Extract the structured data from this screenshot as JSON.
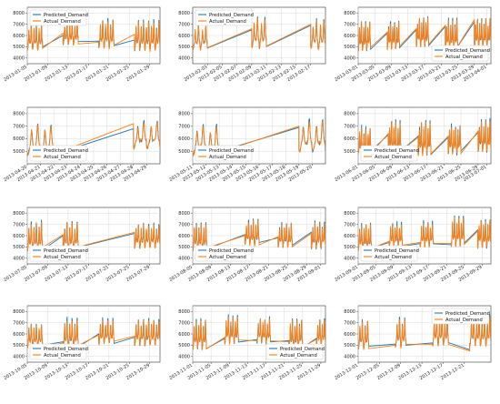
{
  "figure": {
    "legend_labels": {
      "predicted": "Predicted_Demand",
      "actual": "Actual_Demand"
    },
    "colors": {
      "predicted": "#1f77b4",
      "actual": "#ff7f0e",
      "grid": "#d9d9d9",
      "axis": "#333333"
    }
  },
  "chart_data": [
    {
      "type": "line",
      "title": "",
      "xlabel": "",
      "ylabel": "",
      "legend": "top-left",
      "grid": true,
      "ylim": [
        3500,
        8500
      ],
      "yticks": [
        4000,
        5000,
        6000,
        7000,
        8000
      ],
      "xlim": [
        "2013-01-05",
        "2013-01-31"
      ],
      "xticks": [
        "2013-01-05",
        "2013-01-09",
        "2013-01-13",
        "2013-01-17",
        "2013-01-21",
        "2013-01-25",
        "2013-01-29"
      ],
      "segments": [
        [
          "2013-01-05",
          "2013-01-08"
        ],
        [
          "2013-01-12",
          "2013-01-15"
        ],
        [
          "2013-01-19",
          "2013-01-22"
        ],
        [
          "2013-01-26",
          "2013-01-31"
        ]
      ],
      "bridge": {
        "predicted": [
          6000,
          5500,
          5600
        ],
        "actual": [
          6200,
          5400,
          6100
        ]
      },
      "series": [
        {
          "name": "Predicted_Demand",
          "x_start": "2013-01-05",
          "x_end": "2013-01-31"
        },
        {
          "name": "Actual_Demand",
          "x_start": "2013-01-05",
          "x_end": "2013-01-31"
        }
      ]
    },
    {
      "type": "line",
      "title": "",
      "xlabel": "",
      "ylabel": "",
      "legend": "top-left",
      "grid": true,
      "ylim": [
        3500,
        8500
      ],
      "yticks": [
        4000,
        5000,
        6000,
        7000,
        8000
      ],
      "xlim": [
        "2013-02-01",
        "2013-02-19"
      ],
      "xticks": [
        "2013-02-03",
        "2013-02-05",
        "2013-02-07",
        "2013-02-09",
        "2013-02-11",
        "2013-02-13",
        "2013-02-15",
        "2013-02-17"
      ],
      "segments": [
        [
          "2013-02-01",
          "2013-02-03"
        ],
        [
          "2013-02-09",
          "2013-02-11"
        ],
        [
          "2013-02-17",
          "2013-02-19"
        ]
      ],
      "bridge": {
        "predicted": [
          6500,
          6900
        ],
        "actual": [
          6600,
          7000
        ]
      },
      "series": [
        {
          "name": "Predicted_Demand",
          "x_start": "2013-02-01",
          "x_end": "2013-02-19"
        },
        {
          "name": "Actual_Demand",
          "x_start": "2013-02-01",
          "x_end": "2013-02-19"
        }
      ]
    },
    {
      "type": "line",
      "title": "",
      "xlabel": "",
      "ylabel": "",
      "legend": "bottom-right",
      "grid": true,
      "ylim": [
        3500,
        8500
      ],
      "yticks": [
        4000,
        5000,
        6000,
        7000,
        8000
      ],
      "xlim": [
        "2013-03-01",
        "2013-04-02"
      ],
      "xticks": [
        "2013-03-01",
        "2013-03-05",
        "2013-03-09",
        "2013-03-13",
        "2013-03-17",
        "2013-03-21",
        "2013-03-25",
        "2013-03-29",
        "2013-04-01"
      ],
      "segments": [
        [
          "2013-03-01",
          "2013-03-04"
        ],
        [
          "2013-03-08",
          "2013-03-11"
        ],
        [
          "2013-03-15",
          "2013-03-18"
        ],
        [
          "2013-03-22",
          "2013-03-25"
        ],
        [
          "2013-03-29",
          "2013-04-02"
        ]
      ],
      "bridge": {
        "predicted": [
          6200,
          6500,
          6800,
          7200
        ],
        "actual": [
          6300,
          6600,
          6900,
          7400
        ]
      },
      "series": [
        {
          "name": "Predicted_Demand",
          "x_start": "2013-03-01",
          "x_end": "2013-04-02"
        },
        {
          "name": "Actual_Demand",
          "x_start": "2013-03-01",
          "x_end": "2013-04-02"
        }
      ]
    },
    {
      "type": "line",
      "title": "",
      "xlabel": "",
      "ylabel": "",
      "legend": "bottom-left",
      "grid": true,
      "ylim": [
        4000,
        8500
      ],
      "yticks": [
        5000,
        6000,
        7000,
        8000
      ],
      "xlim": [
        "2013-04-20",
        "2013-04-30"
      ],
      "xticks": [
        "2013-04-20",
        "2013-04-21",
        "2013-04-22",
        "2013-04-23",
        "2013-04-24",
        "2013-04-25",
        "2013-04-26",
        "2013-04-27",
        "2013-04-28",
        "2013-04-29"
      ],
      "segments": [
        [
          "2013-04-20",
          "2013-04-22"
        ],
        [
          "2013-04-28",
          "2013-04-30"
        ]
      ],
      "bridge": {
        "predicted": [
          6800
        ],
        "actual": [
          7200
        ]
      },
      "series": [
        {
          "name": "Predicted_Demand",
          "x_start": "2013-04-20",
          "x_end": "2013-04-30"
        },
        {
          "name": "Actual_Demand",
          "x_start": "2013-04-20",
          "x_end": "2013-04-30"
        }
      ]
    },
    {
      "type": "line",
      "title": "",
      "xlabel": "",
      "ylabel": "",
      "legend": "bottom-left",
      "grid": true,
      "ylim": [
        4000,
        8500
      ],
      "yticks": [
        5000,
        6000,
        7000,
        8000
      ],
      "xlim": [
        "2013-05-11",
        "2013-05-21"
      ],
      "xticks": [
        "2013-05-11",
        "2013-05-12",
        "2013-05-13",
        "2013-05-14",
        "2013-05-15",
        "2013-05-16",
        "2013-05-17",
        "2013-05-18",
        "2013-05-19",
        "2013-05-20"
      ],
      "segments": [
        [
          "2013-05-11",
          "2013-05-13"
        ],
        [
          "2013-05-19",
          "2013-05-21"
        ]
      ],
      "bridge": {
        "predicted": [
          6900
        ],
        "actual": [
          7000
        ]
      },
      "series": [
        {
          "name": "Predicted_Demand",
          "x_start": "2013-05-11",
          "x_end": "2013-05-21"
        },
        {
          "name": "Actual_Demand",
          "x_start": "2013-05-11",
          "x_end": "2013-05-21"
        }
      ]
    },
    {
      "type": "line",
      "title": "",
      "xlabel": "",
      "ylabel": "",
      "legend": "bottom-left",
      "grid": true,
      "ylim": [
        4000,
        8500
      ],
      "yticks": [
        5000,
        6000,
        7000,
        8000
      ],
      "xlim": [
        "2013-06-01",
        "2013-07-02"
      ],
      "xticks": [
        "2013-06-01",
        "2013-06-05",
        "2013-06-09",
        "2013-06-13",
        "2013-06-17",
        "2013-06-21",
        "2013-06-25",
        "2013-06-29",
        "2013-07-01"
      ],
      "segments": [
        [
          "2013-06-01",
          "2013-06-04"
        ],
        [
          "2013-06-08",
          "2013-06-11"
        ],
        [
          "2013-06-15",
          "2013-06-18"
        ],
        [
          "2013-06-22",
          "2013-06-25"
        ],
        [
          "2013-06-29",
          "2013-07-02"
        ]
      ],
      "bridge": {
        "predicted": [
          6300,
          6200,
          6100,
          6500
        ],
        "actual": [
          6400,
          6100,
          6200,
          6600
        ]
      },
      "series": [
        {
          "name": "Predicted_Demand",
          "x_start": "2013-06-01",
          "x_end": "2013-07-02"
        },
        {
          "name": "Actual_Demand",
          "x_start": "2013-06-01",
          "x_end": "2013-07-02"
        }
      ]
    },
    {
      "type": "line",
      "title": "",
      "xlabel": "",
      "ylabel": "",
      "legend": "bottom-left",
      "grid": true,
      "ylim": [
        3500,
        8500
      ],
      "yticks": [
        4000,
        5000,
        6000,
        7000,
        8000
      ],
      "xlim": [
        "2013-07-05",
        "2013-07-31"
      ],
      "xticks": [
        "2013-07-05",
        "2013-07-09",
        "2013-07-13",
        "2013-07-17",
        "2013-07-21",
        "2013-07-25",
        "2013-07-29"
      ],
      "segments": [
        [
          "2013-07-05",
          "2013-07-08"
        ],
        [
          "2013-07-12",
          "2013-07-15"
        ],
        [
          "2013-07-26",
          "2013-07-31"
        ]
      ],
      "bridge": {
        "predicted": [
          6000,
          6200
        ],
        "actual": [
          6100,
          6300
        ]
      },
      "series": [
        {
          "name": "Predicted_Demand",
          "x_start": "2013-07-05",
          "x_end": "2013-07-31"
        },
        {
          "name": "Actual_Demand",
          "x_start": "2013-07-05",
          "x_end": "2013-07-31"
        }
      ]
    },
    {
      "type": "line",
      "title": "",
      "xlabel": "",
      "ylabel": "",
      "legend": "bottom-left",
      "grid": true,
      "ylim": [
        3500,
        8500
      ],
      "yticks": [
        4000,
        5000,
        6000,
        7000,
        8000
      ],
      "xlim": [
        "2013-08-05",
        "2013-09-02"
      ],
      "xticks": [
        "2013-08-05",
        "2013-08-09",
        "2013-08-13",
        "2013-08-17",
        "2013-08-21",
        "2013-08-25",
        "2013-08-29",
        "2013-09-01"
      ],
      "segments": [
        [
          "2013-08-05",
          "2013-08-08"
        ],
        [
          "2013-08-16",
          "2013-08-19"
        ],
        [
          "2013-08-23",
          "2013-08-26"
        ],
        [
          "2013-08-30",
          "2013-09-02"
        ]
      ],
      "bridge": {
        "predicted": [
          6100,
          5800,
          6300
        ],
        "actual": [
          6000,
          5900,
          6200
        ]
      },
      "series": [
        {
          "name": "Predicted_Demand",
          "x_start": "2013-08-05",
          "x_end": "2013-09-02"
        },
        {
          "name": "Actual_Demand",
          "x_start": "2013-08-05",
          "x_end": "2013-09-02"
        }
      ]
    },
    {
      "type": "line",
      "title": "",
      "xlabel": "",
      "ylabel": "",
      "legend": "bottom-left",
      "grid": true,
      "ylim": [
        3500,
        8500
      ],
      "yticks": [
        4000,
        5000,
        6000,
        7000,
        8000
      ],
      "xlim": [
        "2013-09-01",
        "2013-10-01"
      ],
      "xticks": [
        "2013-09-01",
        "2013-09-05",
        "2013-09-09",
        "2013-09-13",
        "2013-09-17",
        "2013-09-21",
        "2013-09-25",
        "2013-09-29"
      ],
      "segments": [
        [
          "2013-09-01",
          "2013-09-04"
        ],
        [
          "2013-09-08",
          "2013-09-11"
        ],
        [
          "2013-09-15",
          "2013-09-18"
        ],
        [
          "2013-09-22",
          "2013-09-25"
        ],
        [
          "2013-09-28",
          "2013-10-01"
        ]
      ],
      "bridge": {
        "predicted": [
          5400,
          5300,
          5200,
          6500
        ],
        "actual": [
          5500,
          5400,
          5300,
          6400
        ]
      },
      "series": [
        {
          "name": "Predicted_Demand",
          "x_start": "2013-09-01",
          "x_end": "2013-10-01"
        },
        {
          "name": "Actual_Demand",
          "x_start": "2013-09-01",
          "x_end": "2013-10-01"
        }
      ]
    },
    {
      "type": "line",
      "title": "",
      "xlabel": "",
      "ylabel": "",
      "legend": "bottom-left",
      "grid": true,
      "ylim": [
        3500,
        8500
      ],
      "yticks": [
        4000,
        5000,
        6000,
        7000,
        8000
      ],
      "xlim": [
        "2013-10-05",
        "2013-10-31"
      ],
      "xticks": [
        "2013-10-05",
        "2013-10-09",
        "2013-10-13",
        "2013-10-17",
        "2013-10-21",
        "2013-10-25",
        "2013-10-29"
      ],
      "segments": [
        [
          "2013-10-05",
          "2013-10-08"
        ],
        [
          "2013-10-12",
          "2013-10-15"
        ],
        [
          "2013-10-19",
          "2013-10-22"
        ],
        [
          "2013-10-26",
          "2013-10-31"
        ]
      ],
      "bridge": {
        "predicted": [
          5300,
          6000,
          5700
        ],
        "actual": [
          5200,
          5900,
          5800
        ]
      },
      "series": [
        {
          "name": "Predicted_Demand",
          "x_start": "2013-10-05",
          "x_end": "2013-10-31"
        },
        {
          "name": "Actual_Demand",
          "x_start": "2013-10-05",
          "x_end": "2013-10-31"
        }
      ]
    },
    {
      "type": "line",
      "title": "",
      "xlabel": "",
      "ylabel": "",
      "legend": "bottom-right",
      "grid": true,
      "ylim": [
        3500,
        8500
      ],
      "yticks": [
        4000,
        5000,
        6000,
        7000,
        8000
      ],
      "xlim": [
        "2013-11-01",
        "2013-11-30"
      ],
      "xticks": [
        "2013-11-01",
        "2013-11-05",
        "2013-11-09",
        "2013-11-13",
        "2013-11-17",
        "2013-11-21",
        "2013-11-25",
        "2013-11-29"
      ],
      "segments": [
        [
          "2013-11-01",
          "2013-11-04"
        ],
        [
          "2013-11-08",
          "2013-11-11"
        ],
        [
          "2013-11-15",
          "2013-11-18"
        ],
        [
          "2013-11-22",
          "2013-11-25"
        ],
        [
          "2013-11-28",
          "2013-11-30"
        ]
      ],
      "bridge": {
        "predicted": [
          5600,
          5500,
          5400,
          5600
        ],
        "actual": [
          5700,
          5400,
          5300,
          5500
        ]
      },
      "series": [
        {
          "name": "Predicted_Demand",
          "x_start": "2013-11-01",
          "x_end": "2013-11-30"
        },
        {
          "name": "Actual_Demand",
          "x_start": "2013-11-01",
          "x_end": "2013-11-30"
        }
      ]
    },
    {
      "type": "line",
      "title": "",
      "xlabel": "",
      "ylabel": "",
      "legend": "top-right",
      "grid": true,
      "ylim": [
        3500,
        8500
      ],
      "yticks": [
        4000,
        5000,
        6000,
        7000,
        8000
      ],
      "xlim": [
        "2013-12-01",
        "2013-12-26"
      ],
      "xticks": [
        "2013-12-01",
        "2013-12-05",
        "2013-12-09",
        "2013-12-13",
        "2013-12-17",
        "2013-12-21"
      ],
      "segments": [
        [
          "2013-12-01",
          "2013-12-03"
        ],
        [
          "2013-12-08",
          "2013-12-10"
        ],
        [
          "2013-12-15",
          "2013-12-18"
        ],
        [
          "2013-12-22",
          "2013-12-26"
        ]
      ],
      "bridge": {
        "predicted": [
          5100,
          5200,
          4600
        ],
        "actual": [
          5000,
          5100,
          4500
        ]
      },
      "series": [
        {
          "name": "Predicted_Demand",
          "x_start": "2013-12-01",
          "x_end": "2013-12-26"
        },
        {
          "name": "Actual_Demand",
          "x_start": "2013-12-01",
          "x_end": "2013-12-26"
        }
      ]
    }
  ]
}
